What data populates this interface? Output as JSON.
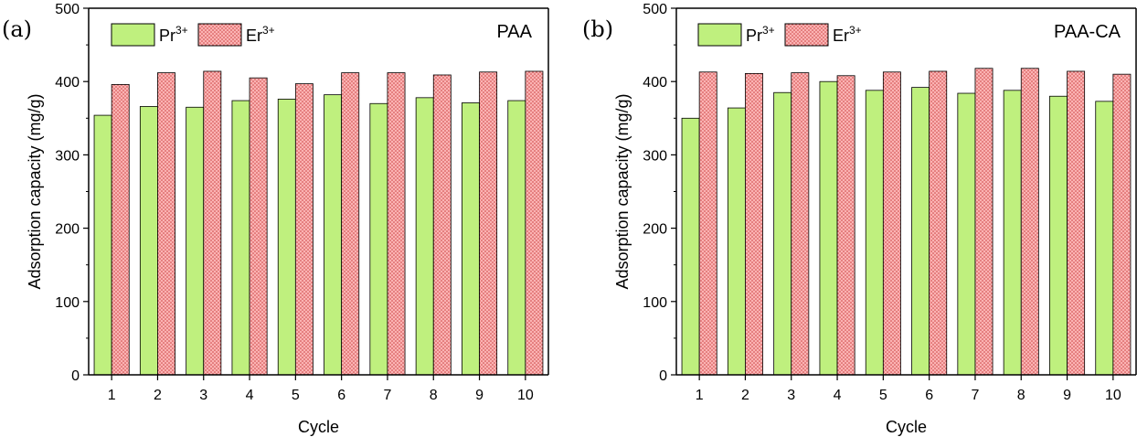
{
  "colors": {
    "pr_fill": "#bff07e",
    "er_fill": "#fbb3b3",
    "er_dot": "#c83a3a",
    "axis": "#000000",
    "bar_edge": "#000000"
  },
  "chart_data": [
    {
      "type": "bar",
      "panel_label": "(a)",
      "title": "PAA",
      "xlabel": "Cycle",
      "ylabel": "Adsorption capacity (mg/g)",
      "ylim": [
        0,
        500
      ],
      "yticks": [
        0,
        100,
        200,
        300,
        400,
        500
      ],
      "categories": [
        "1",
        "2",
        "3",
        "4",
        "5",
        "6",
        "7",
        "8",
        "9",
        "10"
      ],
      "legend_position": "top-left",
      "series": [
        {
          "name": "Pr",
          "sup": "3+",
          "color": "#bff07e",
          "pattern": "solid",
          "values": [
            354,
            366,
            365,
            374,
            376,
            382,
            370,
            378,
            371,
            374
          ]
        },
        {
          "name": "Er",
          "sup": "3+",
          "color": "#fbb3b3",
          "pattern": "dots",
          "values": [
            396,
            412,
            414,
            405,
            397,
            412,
            412,
            409,
            413,
            414
          ]
        }
      ]
    },
    {
      "type": "bar",
      "panel_label": "(b)",
      "title": "PAA-CA",
      "xlabel": "Cycle",
      "ylabel": "Adsorption capacity (mg/g)",
      "ylim": [
        0,
        500
      ],
      "yticks": [
        0,
        100,
        200,
        300,
        400,
        500
      ],
      "categories": [
        "1",
        "2",
        "3",
        "4",
        "5",
        "6",
        "7",
        "8",
        "9",
        "10"
      ],
      "legend_position": "top-left",
      "series": [
        {
          "name": "Pr",
          "sup": "3+",
          "color": "#bff07e",
          "pattern": "solid",
          "values": [
            350,
            364,
            385,
            400,
            388,
            392,
            384,
            388,
            380,
            373
          ]
        },
        {
          "name": "Er",
          "sup": "3+",
          "color": "#fbb3b3",
          "pattern": "dots",
          "values": [
            413,
            411,
            412,
            408,
            413,
            414,
            418,
            418,
            414,
            410
          ]
        }
      ]
    }
  ]
}
